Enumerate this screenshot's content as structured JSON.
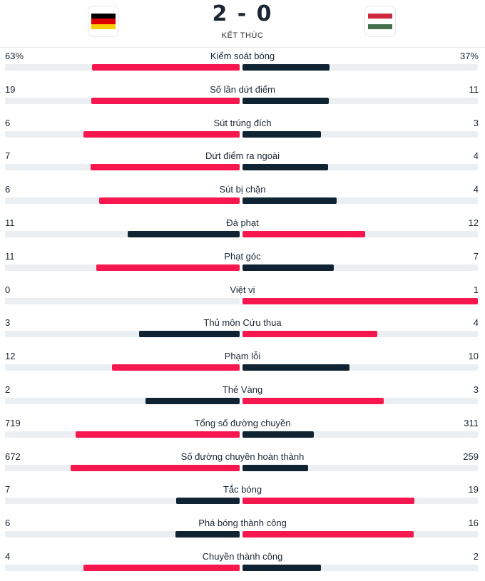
{
  "match": {
    "home_flag": "germany-flag",
    "away_flag": "hungary-flag",
    "score": "2 - 0",
    "status": "KẾT THÚC"
  },
  "colors": {
    "red": "#f6174f",
    "dark": "#0f2332",
    "track": "#eceff2"
  },
  "stats": [
    {
      "label": "Kiểm soát bóng",
      "home": "63%",
      "away": "37%",
      "home_val": 63,
      "away_val": 37,
      "leader": "home"
    },
    {
      "label": "Số lần dứt điểm",
      "home": "19",
      "away": "11",
      "home_val": 19,
      "away_val": 11,
      "leader": "home"
    },
    {
      "label": "Sút trúng đích",
      "home": "6",
      "away": "3",
      "home_val": 6,
      "away_val": 3,
      "leader": "home"
    },
    {
      "label": "Dứt điểm ra ngoài",
      "home": "7",
      "away": "4",
      "home_val": 7,
      "away_val": 4,
      "leader": "home"
    },
    {
      "label": "Sút bị chặn",
      "home": "6",
      "away": "4",
      "home_val": 6,
      "away_val": 4,
      "leader": "home"
    },
    {
      "label": "Đá phạt",
      "home": "11",
      "away": "12",
      "home_val": 11,
      "away_val": 12,
      "leader": "away"
    },
    {
      "label": "Phạt góc",
      "home": "11",
      "away": "7",
      "home_val": 11,
      "away_val": 7,
      "leader": "home"
    },
    {
      "label": "Việt vị",
      "home": "0",
      "away": "1",
      "home_val": 0,
      "away_val": 1,
      "leader": "away"
    },
    {
      "label": "Thủ môn Cứu thua",
      "home": "3",
      "away": "4",
      "home_val": 3,
      "away_val": 4,
      "leader": "away"
    },
    {
      "label": "Phạm lỗi",
      "home": "12",
      "away": "10",
      "home_val": 12,
      "away_val": 10,
      "leader": "home"
    },
    {
      "label": "Thẻ Vàng",
      "home": "2",
      "away": "3",
      "home_val": 2,
      "away_val": 3,
      "leader": "away"
    },
    {
      "label": "Tổng số đường chuyền",
      "home": "719",
      "away": "311",
      "home_val": 719,
      "away_val": 311,
      "leader": "home"
    },
    {
      "label": "Số đường chuyền hoàn thành",
      "home": "672",
      "away": "259",
      "home_val": 672,
      "away_val": 259,
      "leader": "home"
    },
    {
      "label": "Tắc bóng",
      "home": "7",
      "away": "19",
      "home_val": 7,
      "away_val": 19,
      "leader": "away"
    },
    {
      "label": "Phá bóng thành công",
      "home": "6",
      "away": "16",
      "home_val": 6,
      "away_val": 16,
      "leader": "away"
    },
    {
      "label": "Chuyền thành công",
      "home": "4",
      "away": "2",
      "home_val": 4,
      "away_val": 2,
      "leader": "home"
    }
  ]
}
